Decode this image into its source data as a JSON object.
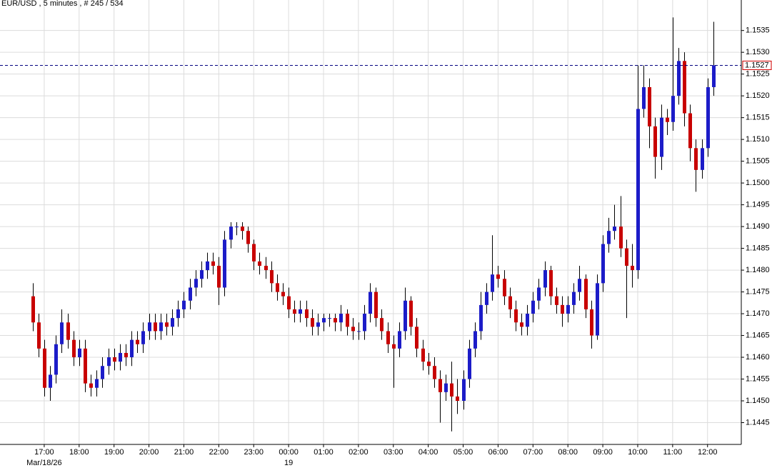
{
  "chart_data": {
    "type": "candlestick",
    "title": "EUR/USD , 5 minutes , # 245 / 534",
    "open": [
      1.1474,
      1.1468,
      1.1462,
      1.1453,
      1.1456,
      1.1463,
      1.1468,
      1.1464,
      1.146,
      1.1462,
      1.1454,
      1.1453,
      1.1455,
      1.1458,
      1.146,
      1.1459,
      1.1461,
      1.146,
      1.1464,
      1.1463,
      1.1466,
      1.1468,
      1.1466,
      1.1468,
      1.1467,
      1.1469,
      1.1471,
      1.1473,
      1.1476,
      1.1478,
      1.148,
      1.1482,
      1.1481,
      1.1476,
      1.1487,
      1.149,
      1.149,
      1.1489,
      1.1486,
      1.1482,
      1.1481,
      1.148,
      1.1477,
      1.1475,
      1.1474,
      1.1471,
      1.147,
      1.1471,
      1.1469,
      1.1467,
      1.1468,
      1.1469,
      1.1469,
      1.1468,
      1.147,
      1.1467,
      1.1466,
      1.1466,
      1.147,
      1.1475,
      1.1469,
      1.1466,
      1.1463,
      1.1462,
      1.1466,
      1.1473,
      1.1467,
      1.1462,
      1.1459,
      1.1458,
      1.1455,
      1.1452,
      1.1454,
      1.1451,
      1.145,
      1.1455,
      1.1462,
      1.1466,
      1.1472,
      1.1475,
      1.1479,
      1.1478,
      1.1474,
      1.1471,
      1.1468,
      1.1467,
      1.147,
      1.1473,
      1.1476,
      1.148,
      1.1474,
      1.1472,
      1.147,
      1.1472,
      1.1475,
      1.1478,
      1.1471,
      1.1465,
      1.1477,
      1.1486,
      1.1489,
      1.149,
      1.1485,
      1.1481,
      1.148,
      1.1517,
      1.1522,
      1.1513,
      1.1506,
      1.1515,
      1.1514,
      1.152,
      1.1528,
      1.1516,
      1.1508,
      1.1503,
      1.1508,
      1.1522
    ],
    "high": [
      1.1477,
      1.147,
      1.1464,
      1.1458,
      1.1465,
      1.1471,
      1.147,
      1.1466,
      1.1464,
      1.1464,
      1.1456,
      1.1457,
      1.146,
      1.1462,
      1.1462,
      1.1463,
      1.1463,
      1.1466,
      1.1466,
      1.1468,
      1.147,
      1.147,
      1.147,
      1.147,
      1.1471,
      1.1473,
      1.1475,
      1.1478,
      1.148,
      1.1482,
      1.1484,
      1.1484,
      1.1483,
      1.1489,
      1.1491,
      1.1491,
      1.1491,
      1.149,
      1.1487,
      1.1484,
      1.1483,
      1.1482,
      1.1479,
      1.1477,
      1.1476,
      1.1473,
      1.1473,
      1.1473,
      1.1471,
      1.147,
      1.147,
      1.147,
      1.147,
      1.1472,
      1.1471,
      1.1469,
      1.1468,
      1.1472,
      1.1477,
      1.1476,
      1.1471,
      1.1468,
      1.1465,
      1.1468,
      1.1476,
      1.1474,
      1.1469,
      1.1464,
      1.1461,
      1.146,
      1.1457,
      1.1456,
      1.1459,
      1.1455,
      1.1457,
      1.1464,
      1.1468,
      1.1475,
      1.1477,
      1.1488,
      1.1481,
      1.148,
      1.1476,
      1.1473,
      1.147,
      1.1472,
      1.1475,
      1.1478,
      1.1482,
      1.1481,
      1.1476,
      1.1474,
      1.1474,
      1.1477,
      1.1481,
      1.1479,
      1.1473,
      1.1479,
      1.1488,
      1.1492,
      1.1495,
      1.1497,
      1.1487,
      1.1486,
      1.1527,
      1.1527,
      1.1524,
      1.1515,
      1.1518,
      1.1517,
      1.1538,
      1.1531,
      1.153,
      1.1518,
      1.151,
      1.151,
      1.1524,
      1.1537
    ],
    "low": [
      1.1466,
      1.146,
      1.1451,
      1.145,
      1.1454,
      1.1461,
      1.1462,
      1.1458,
      1.1458,
      1.1452,
      1.1451,
      1.1451,
      1.1453,
      1.1456,
      1.1457,
      1.1457,
      1.1458,
      1.1458,
      1.1461,
      1.1461,
      1.1464,
      1.1464,
      1.1464,
      1.1465,
      1.1465,
      1.1467,
      1.1469,
      1.1471,
      1.1474,
      1.1476,
      1.1478,
      1.1479,
      1.1472,
      1.1474,
      1.1485,
      1.1488,
      1.1487,
      1.1484,
      1.148,
      1.1479,
      1.1478,
      1.1475,
      1.1473,
      1.1472,
      1.1469,
      1.1468,
      1.1468,
      1.1467,
      1.1465,
      1.1465,
      1.1466,
      1.1467,
      1.1466,
      1.1466,
      1.1465,
      1.1464,
      1.1464,
      1.1464,
      1.1468,
      1.1467,
      1.1464,
      1.1461,
      1.1453,
      1.146,
      1.1464,
      1.1465,
      1.146,
      1.1457,
      1.1456,
      1.1453,
      1.1445,
      1.145,
      1.1443,
      1.1447,
      1.1448,
      1.1453,
      1.146,
      1.1464,
      1.147,
      1.1473,
      1.1476,
      1.1472,
      1.1469,
      1.1466,
      1.1465,
      1.1465,
      1.1468,
      1.1471,
      1.1474,
      1.1472,
      1.147,
      1.1467,
      1.1468,
      1.147,
      1.1473,
      1.1469,
      1.1462,
      1.1464,
      1.1475,
      1.1484,
      1.1487,
      1.1483,
      1.1469,
      1.1476,
      1.1478,
      1.1515,
      1.1508,
      1.1501,
      1.1503,
      1.1511,
      1.1512,
      1.1518,
      1.1513,
      1.1505,
      1.1498,
      1.1501,
      1.1506,
      1.152
    ],
    "close": [
      1.1468,
      1.1462,
      1.1453,
      1.1456,
      1.1463,
      1.1468,
      1.1464,
      1.146,
      1.1462,
      1.1454,
      1.1453,
      1.1455,
      1.1458,
      1.146,
      1.1459,
      1.1461,
      1.146,
      1.1464,
      1.1463,
      1.1466,
      1.1468,
      1.1466,
      1.1468,
      1.1467,
      1.1469,
      1.1471,
      1.1473,
      1.1476,
      1.1478,
      1.148,
      1.1482,
      1.1481,
      1.1476,
      1.1487,
      1.149,
      1.149,
      1.1489,
      1.1486,
      1.1482,
      1.1481,
      1.148,
      1.1477,
      1.1475,
      1.1474,
      1.1471,
      1.147,
      1.1471,
      1.1469,
      1.1467,
      1.1468,
      1.1469,
      1.1469,
      1.1468,
      1.147,
      1.1467,
      1.1466,
      1.1466,
      1.147,
      1.1475,
      1.1469,
      1.1466,
      1.1463,
      1.1462,
      1.1466,
      1.1473,
      1.1467,
      1.1462,
      1.1459,
      1.1458,
      1.1455,
      1.1452,
      1.1454,
      1.1451,
      1.145,
      1.1455,
      1.1462,
      1.1466,
      1.1472,
      1.1475,
      1.1479,
      1.1478,
      1.1474,
      1.1471,
      1.1468,
      1.1467,
      1.147,
      1.1473,
      1.1476,
      1.148,
      1.1474,
      1.1472,
      1.147,
      1.1472,
      1.1475,
      1.1478,
      1.1471,
      1.1465,
      1.1477,
      1.1486,
      1.1489,
      1.149,
      1.1485,
      1.1481,
      1.148,
      1.1517,
      1.1522,
      1.1513,
      1.1506,
      1.1515,
      1.1514,
      1.152,
      1.1528,
      1.1516,
      1.1508,
      1.1503,
      1.1508,
      1.1522,
      1.1527
    ],
    "up_color": "#1c1cc8",
    "down_color": "#c80000",
    "last_price": 1.1527,
    "xlim": [
      -5.6,
      121.8
    ],
    "ylim": [
      1.144,
      1.1542
    ],
    "yticks": [
      1.1445,
      {
        "value": 1.145,
        "label": "1.1450"
      },
      1.1455,
      {
        "value": 1.146,
        "label": "1.1460"
      },
      1.1465,
      {
        "value": 1.147,
        "label": "1.1470"
      },
      1.1475,
      {
        "value": 1.148,
        "label": "1.1480"
      },
      1.1485,
      {
        "value": 1.149,
        "label": "1.1490"
      },
      1.1495,
      {
        "value": 1.15,
        "label": "1.1500"
      },
      1.1505,
      {
        "value": 1.151,
        "label": "1.1510"
      },
      1.1515,
      {
        "value": 1.152,
        "label": "1.1520"
      },
      1.1525,
      {
        "value": 1.153,
        "label": "1.1530"
      },
      1.1535
    ],
    "xticks": [
      {
        "value": 2,
        "label": "17:00"
      },
      {
        "value": 8,
        "label": "18:00"
      },
      {
        "value": 14,
        "label": "19:00"
      },
      {
        "value": 20,
        "label": "20:00"
      },
      {
        "value": 26,
        "label": "21:00"
      },
      {
        "value": 32,
        "label": "22:00"
      },
      {
        "value": 38,
        "label": "23:00"
      },
      {
        "value": 44,
        "label": "00:00"
      },
      {
        "value": 50,
        "label": "01:00"
      },
      {
        "value": 56,
        "label": "02:00"
      },
      {
        "value": 62,
        "label": "03:00"
      },
      {
        "value": 68,
        "label": "04:00"
      },
      {
        "value": 74,
        "label": "05:00"
      },
      {
        "value": 80,
        "label": "06:00"
      },
      {
        "value": 86,
        "label": "07:00"
      },
      {
        "value": 92,
        "label": "08:00"
      },
      {
        "value": 98,
        "label": "09:00"
      },
      {
        "value": 104,
        "label": "10:00"
      },
      {
        "value": 110,
        "label": "11:00"
      },
      {
        "value": 116,
        "label": "12:00"
      }
    ],
    "x_date_labels": [
      {
        "value": 2,
        "label": "Mar/18/26"
      },
      {
        "value": 44,
        "label": "19"
      }
    ],
    "grid": true
  }
}
